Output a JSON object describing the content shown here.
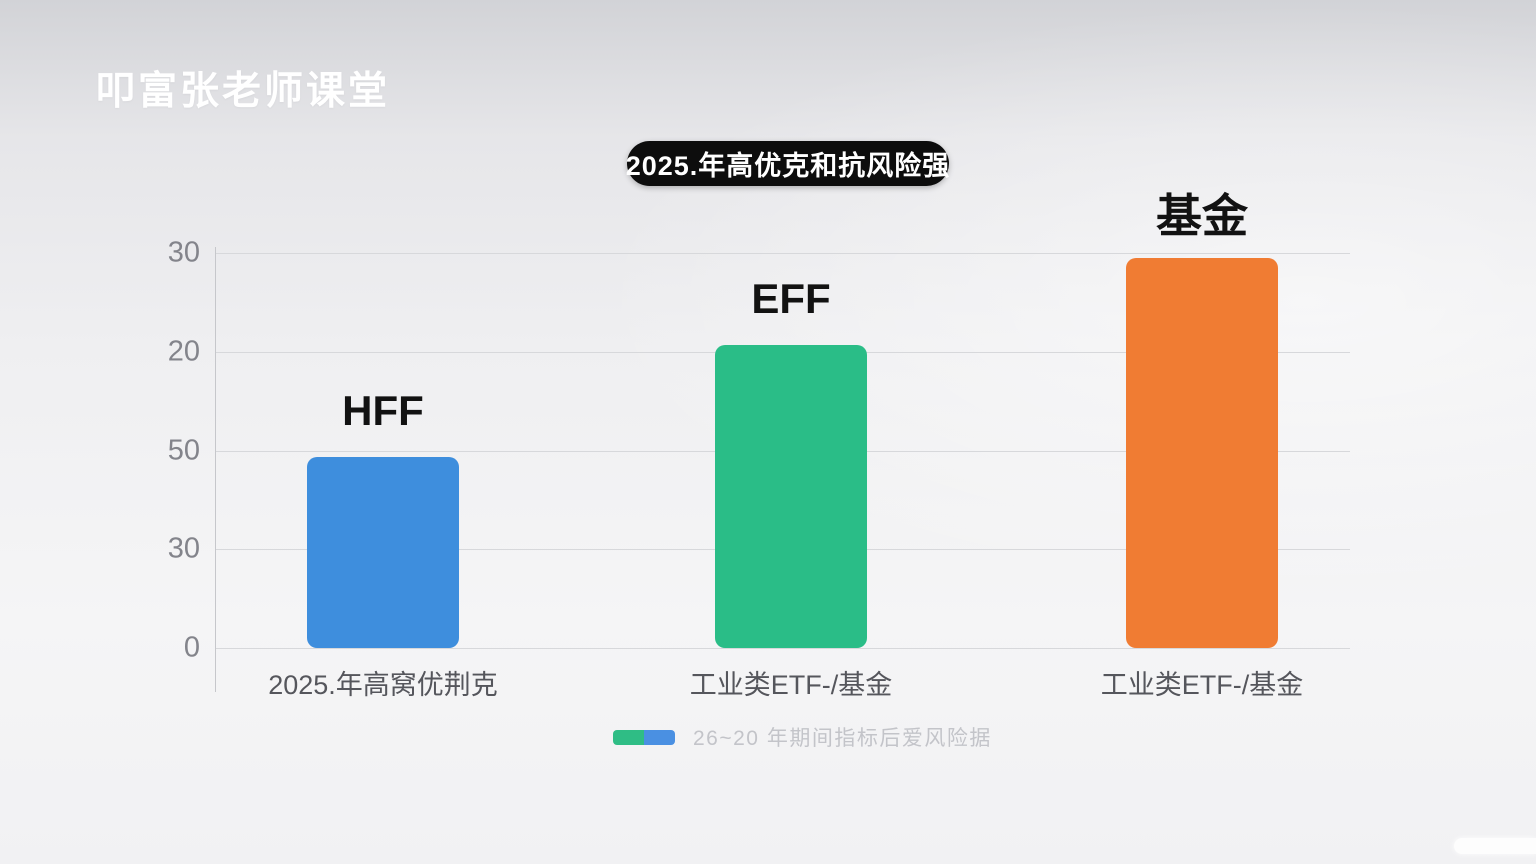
{
  "watermark": {
    "text": "叩富张老师课堂"
  },
  "title_badge": {
    "text": "2025.年高优克和抗风险强",
    "bg": "#0d0d0d",
    "fg": "#ffffff"
  },
  "legend": {
    "swatch_colors": [
      "#2fbd85",
      "#4a90e2"
    ],
    "text": "26~20 年期间指标后爱风险据"
  },
  "chart_data": {
    "type": "bar",
    "title": "2025.年高优克和抗风险强",
    "categories": [
      "2025.年高窝优荆克",
      "工业类ETF-/基金",
      "工业类ETF-/基金"
    ],
    "bar_top_labels": [
      "HFF",
      "EFF",
      "基金"
    ],
    "values": [
      19.3,
      30.7,
      39.5
    ],
    "bar_colors": [
      "#3e8edd",
      "#2abd87",
      "#f07c33"
    ],
    "y_tick_labels_top_to_bottom": [
      "30",
      "20",
      "50",
      "30",
      "0"
    ],
    "ylim": [
      0,
      40
    ],
    "grid": true,
    "legend_position": "bottom",
    "xlabel": "",
    "ylabel": ""
  }
}
